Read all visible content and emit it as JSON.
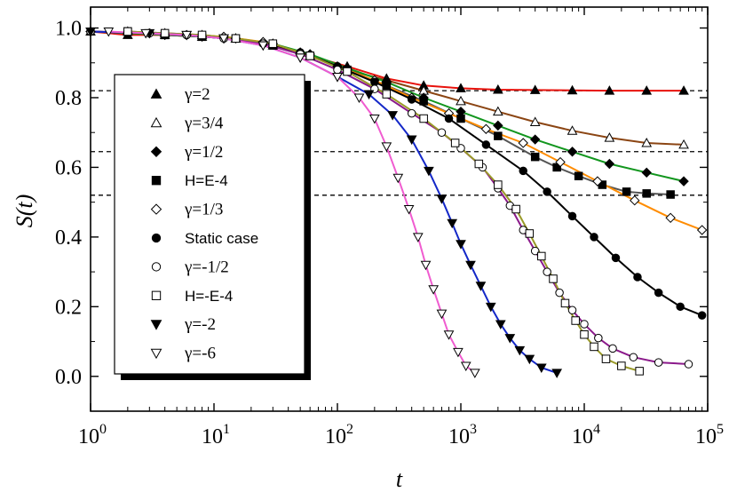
{
  "chart_data": {
    "type": "scatter",
    "xlabel": "t",
    "ylabel": "S(t)",
    "xscale": "log",
    "xlim": [
      1,
      100000
    ],
    "ylim": [
      -0.1,
      1.06
    ],
    "x_tick_labels": [
      {
        "base": "10",
        "exp": "0"
      },
      {
        "base": "10",
        "exp": "1"
      },
      {
        "base": "10",
        "exp": "2"
      },
      {
        "base": "10",
        "exp": "3"
      },
      {
        "base": "10",
        "exp": "4"
      },
      {
        "base": "10",
        "exp": "5"
      }
    ],
    "y_tick_labels": [
      "0.0",
      "0.2",
      "0.4",
      "0.6",
      "0.8",
      "1.0"
    ],
    "grid": false,
    "legend_placement": "left",
    "reference_lines": [
      0.82,
      0.645,
      0.52
    ],
    "series": [
      {
        "name": "γ=2",
        "marker": "triangle-up-filled",
        "color": "#e8120c",
        "points": [
          [
            1,
            0.99
          ],
          [
            2,
            0.98
          ],
          [
            4,
            0.98
          ],
          [
            8,
            0.975
          ],
          [
            15,
            0.97
          ],
          [
            30,
            0.95
          ],
          [
            60,
            0.92
          ],
          [
            120,
            0.89
          ],
          [
            250,
            0.855
          ],
          [
            500,
            0.835
          ],
          [
            1000,
            0.827
          ],
          [
            2000,
            0.823
          ],
          [
            4000,
            0.822
          ],
          [
            8000,
            0.821
          ],
          [
            16000,
            0.82
          ],
          [
            32000,
            0.82
          ],
          [
            64000,
            0.82
          ]
        ]
      },
      {
        "name": "γ=3/4",
        "marker": "triangle-up-open",
        "color": "#8b4513",
        "points": [
          [
            2,
            0.99
          ],
          [
            4,
            0.985
          ],
          [
            8,
            0.98
          ],
          [
            15,
            0.97
          ],
          [
            30,
            0.955
          ],
          [
            60,
            0.92
          ],
          [
            120,
            0.88
          ],
          [
            250,
            0.85
          ],
          [
            500,
            0.82
          ],
          [
            1000,
            0.79
          ],
          [
            2000,
            0.76
          ],
          [
            4000,
            0.73
          ],
          [
            8000,
            0.705
          ],
          [
            16000,
            0.685
          ],
          [
            32000,
            0.67
          ],
          [
            64000,
            0.665
          ]
        ]
      },
      {
        "name": "γ=1/2",
        "marker": "diamond-filled",
        "color": "#12961e",
        "points": [
          [
            1,
            0.99
          ],
          [
            2,
            0.985
          ],
          [
            4,
            0.98
          ],
          [
            8,
            0.975
          ],
          [
            15,
            0.97
          ],
          [
            30,
            0.955
          ],
          [
            60,
            0.925
          ],
          [
            120,
            0.885
          ],
          [
            250,
            0.845
          ],
          [
            500,
            0.8
          ],
          [
            1000,
            0.76
          ],
          [
            2000,
            0.72
          ],
          [
            4000,
            0.68
          ],
          [
            8000,
            0.645
          ],
          [
            16000,
            0.61
          ],
          [
            32000,
            0.585
          ],
          [
            64000,
            0.56
          ]
        ]
      },
      {
        "name": "H=E-4",
        "marker": "square-filled",
        "color": "#555555",
        "points": [
          [
            2,
            0.99
          ],
          [
            4,
            0.98
          ],
          [
            8,
            0.975
          ],
          [
            15,
            0.97
          ],
          [
            30,
            0.95
          ],
          [
            60,
            0.92
          ],
          [
            120,
            0.88
          ],
          [
            250,
            0.835
          ],
          [
            500,
            0.79
          ],
          [
            1000,
            0.74
          ],
          [
            2000,
            0.69
          ],
          [
            4000,
            0.63
          ],
          [
            6000,
            0.6
          ],
          [
            9000,
            0.575
          ],
          [
            14000,
            0.55
          ],
          [
            22000,
            0.53
          ],
          [
            32000,
            0.525
          ],
          [
            50000,
            0.522
          ]
        ]
      },
      {
        "name": "γ=1/3",
        "marker": "diamond-open",
        "color": "#ff8c00",
        "points": [
          [
            1,
            0.99
          ],
          [
            3,
            0.985
          ],
          [
            6,
            0.98
          ],
          [
            12,
            0.975
          ],
          [
            25,
            0.96
          ],
          [
            50,
            0.93
          ],
          [
            100,
            0.89
          ],
          [
            200,
            0.85
          ],
          [
            400,
            0.8
          ],
          [
            800,
            0.755
          ],
          [
            1600,
            0.71
          ],
          [
            3200,
            0.67
          ],
          [
            6400,
            0.615
          ],
          [
            12800,
            0.56
          ],
          [
            25600,
            0.505
          ],
          [
            50000,
            0.455
          ],
          [
            90000,
            0.42
          ]
        ]
      },
      {
        "name": "Static case",
        "marker": "circle-filled",
        "color": "#000000",
        "points": [
          [
            1,
            0.99
          ],
          [
            3,
            0.985
          ],
          [
            6,
            0.98
          ],
          [
            12,
            0.97
          ],
          [
            25,
            0.955
          ],
          [
            50,
            0.93
          ],
          [
            100,
            0.89
          ],
          [
            200,
            0.845
          ],
          [
            400,
            0.795
          ],
          [
            800,
            0.74
          ],
          [
            1600,
            0.665
          ],
          [
            3200,
            0.59
          ],
          [
            5000,
            0.53
          ],
          [
            8000,
            0.46
          ],
          [
            12000,
            0.4
          ],
          [
            18000,
            0.34
          ],
          [
            27000,
            0.285
          ],
          [
            40000,
            0.24
          ],
          [
            60000,
            0.2
          ],
          [
            90000,
            0.175
          ]
        ]
      },
      {
        "name": "γ=-1/2",
        "marker": "circle-open",
        "color": "#8b1a8b",
        "points": [
          [
            1,
            0.99
          ],
          [
            3,
            0.985
          ],
          [
            6,
            0.98
          ],
          [
            12,
            0.97
          ],
          [
            25,
            0.955
          ],
          [
            50,
            0.925
          ],
          [
            100,
            0.88
          ],
          [
            200,
            0.825
          ],
          [
            400,
            0.755
          ],
          [
            700,
            0.7
          ],
          [
            1000,
            0.655
          ],
          [
            1500,
            0.6
          ],
          [
            2000,
            0.54
          ],
          [
            2500,
            0.49
          ],
          [
            3200,
            0.42
          ],
          [
            4000,
            0.36
          ],
          [
            5000,
            0.3
          ],
          [
            6300,
            0.24
          ],
          [
            8000,
            0.19
          ],
          [
            10000,
            0.15
          ],
          [
            13000,
            0.11
          ],
          [
            17000,
            0.08
          ],
          [
            25000,
            0.055
          ],
          [
            40000,
            0.04
          ],
          [
            70000,
            0.035
          ]
        ]
      },
      {
        "name": "H=-E-4",
        "marker": "square-open",
        "color": "#9a9a28",
        "points": [
          [
            2,
            0.99
          ],
          [
            4,
            0.985
          ],
          [
            8,
            0.98
          ],
          [
            15,
            0.97
          ],
          [
            30,
            0.955
          ],
          [
            60,
            0.92
          ],
          [
            120,
            0.875
          ],
          [
            250,
            0.81
          ],
          [
            500,
            0.74
          ],
          [
            900,
            0.67
          ],
          [
            1400,
            0.61
          ],
          [
            2000,
            0.55
          ],
          [
            2800,
            0.48
          ],
          [
            3600,
            0.41
          ],
          [
            4500,
            0.345
          ],
          [
            5600,
            0.28
          ],
          [
            7000,
            0.21
          ],
          [
            8500,
            0.16
          ],
          [
            10000,
            0.12
          ],
          [
            12000,
            0.085
          ],
          [
            15000,
            0.05
          ],
          [
            20000,
            0.03
          ],
          [
            28000,
            0.015
          ]
        ]
      },
      {
        "name": "γ=-2",
        "marker": "triangle-down-filled",
        "color": "#1428c8",
        "points": [
          [
            1,
            0.99
          ],
          [
            3,
            0.985
          ],
          [
            6,
            0.98
          ],
          [
            12,
            0.97
          ],
          [
            25,
            0.95
          ],
          [
            50,
            0.915
          ],
          [
            100,
            0.86
          ],
          [
            180,
            0.81
          ],
          [
            280,
            0.75
          ],
          [
            400,
            0.68
          ],
          [
            550,
            0.59
          ],
          [
            700,
            0.51
          ],
          [
            850,
            0.44
          ],
          [
            1000,
            0.38
          ],
          [
            1200,
            0.32
          ],
          [
            1450,
            0.26
          ],
          [
            1750,
            0.2
          ],
          [
            2100,
            0.15
          ],
          [
            2500,
            0.11
          ],
          [
            3000,
            0.075
          ],
          [
            3600,
            0.05
          ],
          [
            4500,
            0.025
          ],
          [
            6000,
            0.01
          ]
        ]
      },
      {
        "name": "γ=-6",
        "marker": "triangle-down-open",
        "color": "#f05cd0",
        "points": [
          [
            1.4,
            0.99
          ],
          [
            2.8,
            0.985
          ],
          [
            6,
            0.98
          ],
          [
            12,
            0.97
          ],
          [
            25,
            0.95
          ],
          [
            50,
            0.915
          ],
          [
            100,
            0.86
          ],
          [
            150,
            0.8
          ],
          [
            200,
            0.74
          ],
          [
            250,
            0.66
          ],
          [
            310,
            0.57
          ],
          [
            380,
            0.48
          ],
          [
            450,
            0.4
          ],
          [
            520,
            0.32
          ],
          [
            600,
            0.25
          ],
          [
            700,
            0.18
          ],
          [
            800,
            0.12
          ],
          [
            950,
            0.07
          ],
          [
            1100,
            0.03
          ],
          [
            1300,
            0.01
          ]
        ]
      }
    ]
  }
}
